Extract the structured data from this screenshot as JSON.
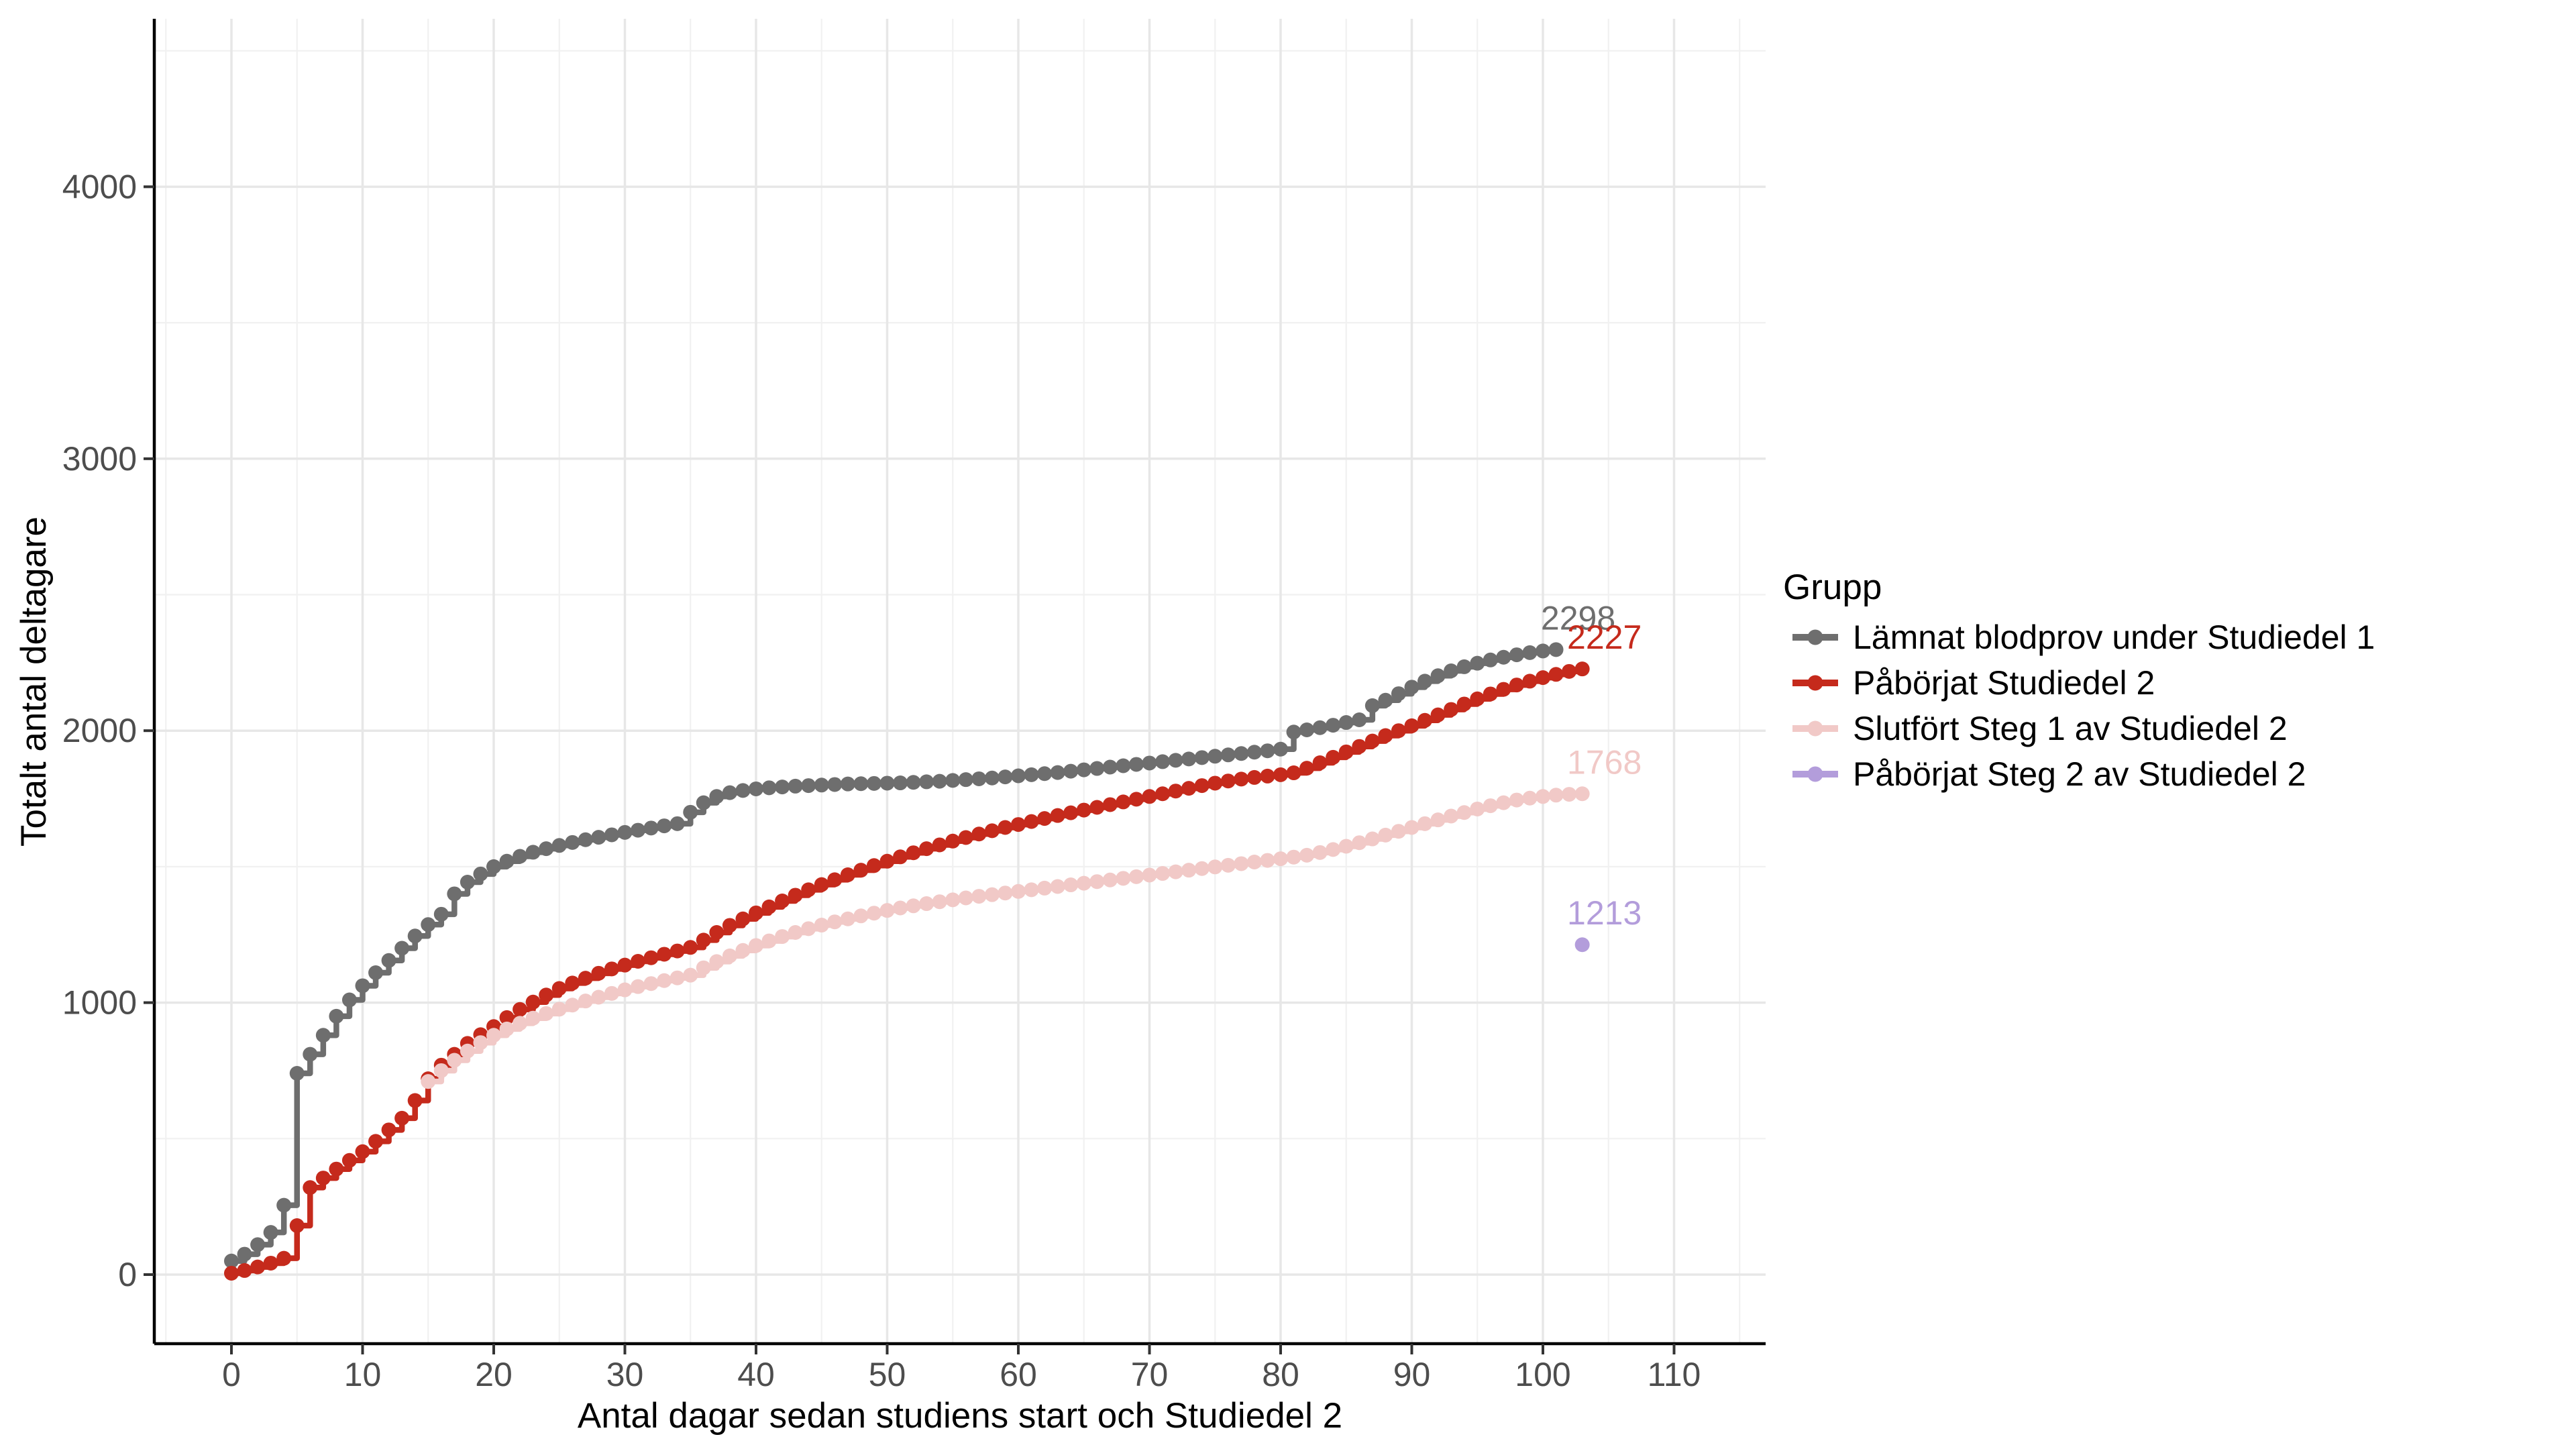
{
  "chart_data": {
    "type": "line",
    "step": true,
    "title": "",
    "xlabel": "Antal dagar sedan studiens start och Studiedel 2",
    "ylabel": "Totalt antal deltagare",
    "x_ticks": [
      0,
      10,
      20,
      30,
      40,
      50,
      60,
      70,
      80,
      90,
      100,
      110
    ],
    "y_ticks": [
      0,
      1000,
      2000,
      3000,
      4000
    ],
    "x_minor_ticks": [
      -5,
      5,
      15,
      25,
      35,
      45,
      55,
      65,
      75,
      85,
      95,
      105,
      115
    ],
    "y_minor_ticks": [
      500,
      1500,
      2500,
      3500,
      4500
    ],
    "xlim": [
      -6,
      117
    ],
    "ylim": [
      -255,
      4620
    ],
    "grid": true,
    "legend_position": "right",
    "legend_title": "Grupp",
    "series": [
      {
        "name": "Lämnat blodprov under Studiedel 1",
        "color": "#6e6e6e",
        "end_label": "2298",
        "points": [
          [
            0,
            50
          ],
          [
            1,
            75
          ],
          [
            2,
            110
          ],
          [
            3,
            155
          ],
          [
            4,
            255
          ],
          [
            5,
            740
          ],
          [
            6,
            810
          ],
          [
            7,
            880
          ],
          [
            8,
            950
          ],
          [
            9,
            1010
          ],
          [
            10,
            1062
          ],
          [
            11,
            1110
          ],
          [
            12,
            1155
          ],
          [
            13,
            1200
          ],
          [
            14,
            1245
          ],
          [
            15,
            1287
          ],
          [
            16,
            1325
          ],
          [
            17,
            1400
          ],
          [
            18,
            1443
          ],
          [
            19,
            1473
          ],
          [
            20,
            1500
          ],
          [
            21,
            1520
          ],
          [
            22,
            1538
          ],
          [
            23,
            1553
          ],
          [
            24,
            1566
          ],
          [
            25,
            1578
          ],
          [
            26,
            1589
          ],
          [
            27,
            1599
          ],
          [
            28,
            1608
          ],
          [
            29,
            1617
          ],
          [
            30,
            1626
          ],
          [
            31,
            1634
          ],
          [
            32,
            1642
          ],
          [
            33,
            1650
          ],
          [
            34,
            1658
          ],
          [
            35,
            1700
          ],
          [
            36,
            1735
          ],
          [
            37,
            1758
          ],
          [
            38,
            1772
          ],
          [
            39,
            1780
          ],
          [
            40,
            1786
          ],
          [
            41,
            1790
          ],
          [
            42,
            1793
          ],
          [
            43,
            1796
          ],
          [
            44,
            1798
          ],
          [
            45,
            1800
          ],
          [
            46,
            1802
          ],
          [
            47,
            1804
          ],
          [
            48,
            1805
          ],
          [
            49,
            1806
          ],
          [
            50,
            1807
          ],
          [
            51,
            1808
          ],
          [
            52,
            1810
          ],
          [
            53,
            1812
          ],
          [
            54,
            1814
          ],
          [
            55,
            1817
          ],
          [
            56,
            1820
          ],
          [
            57,
            1823
          ],
          [
            58,
            1826
          ],
          [
            59,
            1830
          ],
          [
            60,
            1834
          ],
          [
            61,
            1838
          ],
          [
            62,
            1842
          ],
          [
            63,
            1846
          ],
          [
            64,
            1851
          ],
          [
            65,
            1856
          ],
          [
            66,
            1861
          ],
          [
            67,
            1866
          ],
          [
            68,
            1871
          ],
          [
            69,
            1876
          ],
          [
            70,
            1881
          ],
          [
            71,
            1886
          ],
          [
            72,
            1891
          ],
          [
            73,
            1896
          ],
          [
            74,
            1901
          ],
          [
            75,
            1906
          ],
          [
            76,
            1911
          ],
          [
            77,
            1916
          ],
          [
            78,
            1921
          ],
          [
            79,
            1926
          ],
          [
            80,
            1932
          ],
          [
            81,
            1995
          ],
          [
            82,
            2003
          ],
          [
            83,
            2011
          ],
          [
            84,
            2020
          ],
          [
            85,
            2030
          ],
          [
            86,
            2040
          ],
          [
            87,
            2092
          ],
          [
            88,
            2112
          ],
          [
            89,
            2136
          ],
          [
            90,
            2160
          ],
          [
            91,
            2182
          ],
          [
            92,
            2202
          ],
          [
            93,
            2220
          ],
          [
            94,
            2235
          ],
          [
            95,
            2248
          ],
          [
            96,
            2260
          ],
          [
            97,
            2270
          ],
          [
            98,
            2279
          ],
          [
            99,
            2287
          ],
          [
            100,
            2293
          ],
          [
            101,
            2298
          ]
        ]
      },
      {
        "name": "Påbörjat Studiedel 2",
        "color": "#c52a1c",
        "end_label": "2227",
        "points": [
          [
            0,
            5
          ],
          [
            1,
            15
          ],
          [
            2,
            28
          ],
          [
            3,
            42
          ],
          [
            4,
            60
          ],
          [
            5,
            180
          ],
          [
            6,
            320
          ],
          [
            7,
            355
          ],
          [
            8,
            388
          ],
          [
            9,
            420
          ],
          [
            10,
            452
          ],
          [
            11,
            490
          ],
          [
            12,
            532
          ],
          [
            13,
            575
          ],
          [
            14,
            640
          ],
          [
            15,
            720
          ],
          [
            16,
            770
          ],
          [
            17,
            810
          ],
          [
            18,
            850
          ],
          [
            19,
            882
          ],
          [
            20,
            912
          ],
          [
            21,
            945
          ],
          [
            22,
            975
          ],
          [
            23,
            1002
          ],
          [
            24,
            1028
          ],
          [
            25,
            1052
          ],
          [
            26,
            1072
          ],
          [
            27,
            1090
          ],
          [
            28,
            1108
          ],
          [
            29,
            1124
          ],
          [
            30,
            1138
          ],
          [
            31,
            1152
          ],
          [
            32,
            1165
          ],
          [
            33,
            1178
          ],
          [
            34,
            1190
          ],
          [
            35,
            1203
          ],
          [
            36,
            1230
          ],
          [
            37,
            1258
          ],
          [
            38,
            1284
          ],
          [
            39,
            1308
          ],
          [
            40,
            1330
          ],
          [
            41,
            1352
          ],
          [
            42,
            1374
          ],
          [
            43,
            1395
          ],
          [
            44,
            1415
          ],
          [
            45,
            1434
          ],
          [
            46,
            1452
          ],
          [
            47,
            1470
          ],
          [
            48,
            1487
          ],
          [
            49,
            1504
          ],
          [
            50,
            1520
          ],
          [
            51,
            1536
          ],
          [
            52,
            1551
          ],
          [
            53,
            1566
          ],
          [
            54,
            1580
          ],
          [
            55,
            1594
          ],
          [
            56,
            1607
          ],
          [
            57,
            1620
          ],
          [
            58,
            1632
          ],
          [
            59,
            1644
          ],
          [
            60,
            1655
          ],
          [
            61,
            1666
          ],
          [
            62,
            1677
          ],
          [
            63,
            1688
          ],
          [
            64,
            1698
          ],
          [
            65,
            1708
          ],
          [
            66,
            1718
          ],
          [
            67,
            1728
          ],
          [
            68,
            1738
          ],
          [
            69,
            1748
          ],
          [
            70,
            1758
          ],
          [
            71,
            1768
          ],
          [
            72,
            1778
          ],
          [
            73,
            1788
          ],
          [
            74,
            1798
          ],
          [
            75,
            1807
          ],
          [
            76,
            1815
          ],
          [
            77,
            1822
          ],
          [
            78,
            1828
          ],
          [
            79,
            1833
          ],
          [
            80,
            1838
          ],
          [
            81,
            1845
          ],
          [
            82,
            1862
          ],
          [
            83,
            1882
          ],
          [
            84,
            1902
          ],
          [
            85,
            1922
          ],
          [
            86,
            1942
          ],
          [
            87,
            1962
          ],
          [
            88,
            1982
          ],
          [
            89,
            2000
          ],
          [
            90,
            2018
          ],
          [
            91,
            2038
          ],
          [
            92,
            2058
          ],
          [
            93,
            2078
          ],
          [
            94,
            2098
          ],
          [
            95,
            2117
          ],
          [
            96,
            2135
          ],
          [
            97,
            2152
          ],
          [
            98,
            2168
          ],
          [
            99,
            2182
          ],
          [
            100,
            2195
          ],
          [
            101,
            2207
          ],
          [
            102,
            2218
          ],
          [
            103,
            2227
          ]
        ]
      },
      {
        "name": "Slutfört Steg 1 av Studiedel 2",
        "color": "#f1c9c7",
        "end_label": "1768",
        "points": [
          [
            15,
            710
          ],
          [
            16,
            750
          ],
          [
            17,
            788
          ],
          [
            18,
            822
          ],
          [
            19,
            853
          ],
          [
            20,
            880
          ],
          [
            21,
            903
          ],
          [
            22,
            924
          ],
          [
            23,
            943
          ],
          [
            24,
            960
          ],
          [
            25,
            976
          ],
          [
            26,
            991
          ],
          [
            27,
            1006
          ],
          [
            28,
            1020
          ],
          [
            29,
            1034
          ],
          [
            30,
            1047
          ],
          [
            31,
            1059
          ],
          [
            32,
            1070
          ],
          [
            33,
            1081
          ],
          [
            34,
            1091
          ],
          [
            35,
            1101
          ],
          [
            36,
            1128
          ],
          [
            37,
            1151
          ],
          [
            38,
            1172
          ],
          [
            39,
            1192
          ],
          [
            40,
            1210
          ],
          [
            41,
            1227
          ],
          [
            42,
            1243
          ],
          [
            43,
            1258
          ],
          [
            44,
            1272
          ],
          [
            45,
            1285
          ],
          [
            46,
            1297
          ],
          [
            47,
            1308
          ],
          [
            48,
            1319
          ],
          [
            49,
            1329
          ],
          [
            50,
            1339
          ],
          [
            51,
            1348
          ],
          [
            52,
            1356
          ],
          [
            53,
            1364
          ],
          [
            54,
            1371
          ],
          [
            55,
            1378
          ],
          [
            56,
            1385
          ],
          [
            57,
            1391
          ],
          [
            58,
            1397
          ],
          [
            59,
            1403
          ],
          [
            60,
            1409
          ],
          [
            61,
            1415
          ],
          [
            62,
            1421
          ],
          [
            63,
            1427
          ],
          [
            64,
            1433
          ],
          [
            65,
            1439
          ],
          [
            66,
            1445
          ],
          [
            67,
            1451
          ],
          [
            68,
            1457
          ],
          [
            69,
            1463
          ],
          [
            70,
            1469
          ],
          [
            71,
            1475
          ],
          [
            72,
            1481
          ],
          [
            73,
            1487
          ],
          [
            74,
            1493
          ],
          [
            75,
            1499
          ],
          [
            76,
            1505
          ],
          [
            77,
            1511
          ],
          [
            78,
            1517
          ],
          [
            79,
            1523
          ],
          [
            80,
            1529
          ],
          [
            81,
            1535
          ],
          [
            82,
            1542
          ],
          [
            83,
            1552
          ],
          [
            84,
            1563
          ],
          [
            85,
            1575
          ],
          [
            86,
            1588
          ],
          [
            87,
            1602
          ],
          [
            88,
            1616
          ],
          [
            89,
            1630
          ],
          [
            90,
            1644
          ],
          [
            91,
            1658
          ],
          [
            92,
            1672
          ],
          [
            93,
            1686
          ],
          [
            94,
            1699
          ],
          [
            95,
            1712
          ],
          [
            96,
            1724
          ],
          [
            97,
            1735
          ],
          [
            98,
            1745
          ],
          [
            99,
            1752
          ],
          [
            100,
            1758
          ],
          [
            101,
            1763
          ],
          [
            102,
            1766
          ],
          [
            103,
            1768
          ]
        ]
      },
      {
        "name": "Påbörjat Steg 2 av Studiedel 2",
        "color": "#b39ddb",
        "end_label": "1213",
        "points": [
          [
            103,
            1213
          ]
        ]
      }
    ]
  }
}
